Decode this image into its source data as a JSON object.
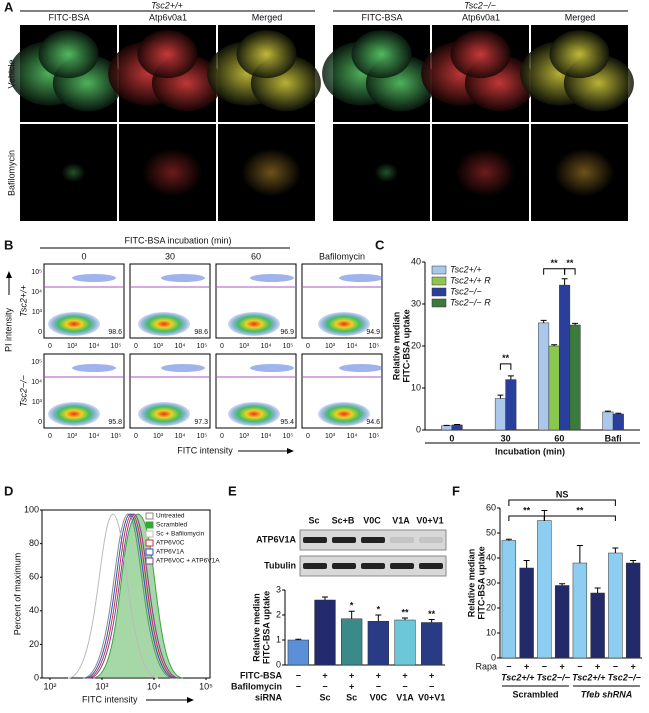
{
  "figure": {
    "A": {
      "label": "A",
      "groups": [
        "Tsc2+/+",
        "Tsc2−/−"
      ],
      "columns": [
        "FITC-BSA",
        "Atp6v0a1",
        "Merged"
      ],
      "rows": [
        "Vehicle",
        "Bafilomycin"
      ]
    },
    "B": {
      "label": "B",
      "header": "FITC-BSA incubation (min)",
      "columns": [
        "0",
        "30",
        "60",
        "Bafilomycin"
      ],
      "rows": [
        "Tsc2+/+",
        "Tsc2−/−"
      ],
      "percentages": [
        [
          "98.6",
          "98.6",
          "96.9",
          "94.9"
        ],
        [
          "95.8",
          "97.3",
          "95.4",
          "94.6"
        ]
      ],
      "xticks": [
        "0",
        "10³",
        "10⁴",
        "10⁵"
      ],
      "yticks": [
        "0",
        "10³",
        "10⁴",
        "10⁵"
      ],
      "ylabel": "PI intensity",
      "xlabel": "FITC intensity"
    },
    "C": {
      "label": "C"
    },
    "D": {
      "label": "D",
      "ylabel": "Percent of maximum",
      "xlabel": "FITC intensity",
      "yticks": [
        "0",
        "20",
        "40",
        "60",
        "80",
        "100"
      ],
      "xticks": [
        "10²",
        "10³",
        "10⁴",
        "10⁵"
      ],
      "legend": [
        {
          "name": "Untreated",
          "color": "#888888"
        },
        {
          "name": "Scrambled",
          "color": "#3aa63a"
        },
        {
          "name": "Sc + Bafilomycin",
          "color": "#bbbbbb"
        },
        {
          "name": "ATP6V0C",
          "color": "#d03030"
        },
        {
          "name": "ATP6V1A",
          "color": "#3050c0"
        },
        {
          "name": "ATP6V0C + ATP6V1A",
          "color": "#8040a0"
        }
      ]
    },
    "E": {
      "label": "E",
      "blot_lanes": [
        "Sc",
        "Sc+B",
        "V0C",
        "V1A",
        "V0+V1"
      ],
      "blot_rows": [
        "ATP6V1A",
        "Tubulin"
      ]
    },
    "F": {
      "label": "F"
    }
  },
  "chart_data": [
    {
      "type": "bar",
      "ylabel": [
        "Relative median",
        "FITC-BSA uptake"
      ],
      "xlabel": "Incubation (min)",
      "categories": [
        "0",
        "30",
        "60",
        "Bafi"
      ],
      "ylim": [
        0,
        40
      ],
      "yticks": [
        0,
        10,
        20,
        30,
        40
      ],
      "legend": "top-left",
      "series": [
        {
          "name": "Tsc2+/+",
          "color": "#a9c8ec",
          "values": [
            1,
            7.5,
            25.5,
            4.3
          ],
          "errors": [
            0.1,
            0.8,
            0.6,
            0.2
          ]
        },
        {
          "name": "Tsc2+/+ R",
          "color": "#8cc850",
          "values": [
            null,
            null,
            20,
            null
          ],
          "errors": [
            null,
            null,
            0.3,
            null
          ]
        },
        {
          "name": "Tsc2−/−",
          "color": "#2a3f9c",
          "values": [
            1.2,
            12,
            34.5,
            3.8
          ],
          "errors": [
            0.1,
            0.9,
            1.5,
            0.2
          ]
        },
        {
          "name": "Tsc2−/− R",
          "color": "#3a7a3a",
          "values": [
            null,
            null,
            25,
            null
          ],
          "errors": [
            null,
            null,
            0.4,
            null
          ]
        }
      ],
      "annotations": [
        "**",
        "**",
        "**"
      ]
    },
    {
      "type": "bar",
      "ylabel": [
        "Relative median",
        "FITC-BSA uptake"
      ],
      "ylim": [
        0,
        3
      ],
      "yticks": [
        0,
        1,
        2,
        3
      ],
      "series": [
        {
          "colors": [
            "#5b8fd8",
            "#232a6e",
            "#3a8a8a",
            "#2a3b85",
            "#6cc8d8",
            "#2a3b85"
          ],
          "values": [
            1.0,
            2.6,
            1.85,
            1.75,
            1.8,
            1.7
          ],
          "errors": [
            0.03,
            0.12,
            0.3,
            0.25,
            0.08,
            0.12
          ]
        }
      ],
      "annotations": [
        null,
        null,
        "*",
        "*",
        "**",
        "**"
      ],
      "table": [
        {
          "label": "FITC-BSA",
          "cells": [
            "−",
            "+",
            "+",
            "+",
            "+",
            "+"
          ]
        },
        {
          "label": "Bafilomycin",
          "cells": [
            "−",
            "−",
            "+",
            "−",
            "−",
            "−"
          ]
        },
        {
          "label": "siRNA",
          "cells": [
            null,
            "Sc",
            "Sc",
            "V0C",
            "V1A",
            "V0+V1"
          ]
        }
      ]
    },
    {
      "type": "bar",
      "ylabel": [
        "Relative median",
        "FITC-BSA uptake"
      ],
      "ylim": [
        0,
        60
      ],
      "yticks": [
        0,
        10,
        20,
        30,
        40,
        50,
        60
      ],
      "category_label": "Rapa",
      "categories": [
        "−",
        "+",
        "−",
        "+",
        "−",
        "+",
        "−",
        "+"
      ],
      "groups": [
        "Tsc2+/+",
        "Tsc2−/−",
        "Tsc2+/+",
        "Tsc2−/−"
      ],
      "supergroups": [
        "Scrambled",
        "Tfeb shRNA"
      ],
      "series": [
        {
          "colors": [
            "#8ccdf0",
            "#222a6a",
            "#8ccdf0",
            "#222a6a",
            "#8ccdf0",
            "#222a6a",
            "#8ccdf0",
            "#222a6a"
          ],
          "values": [
            47,
            36,
            55,
            29,
            38,
            26,
            42,
            38
          ],
          "errors": [
            0.5,
            3,
            4,
            0.7,
            7,
            2,
            2,
            1
          ]
        }
      ],
      "annotations": [
        "NS",
        "**",
        "**"
      ]
    }
  ]
}
